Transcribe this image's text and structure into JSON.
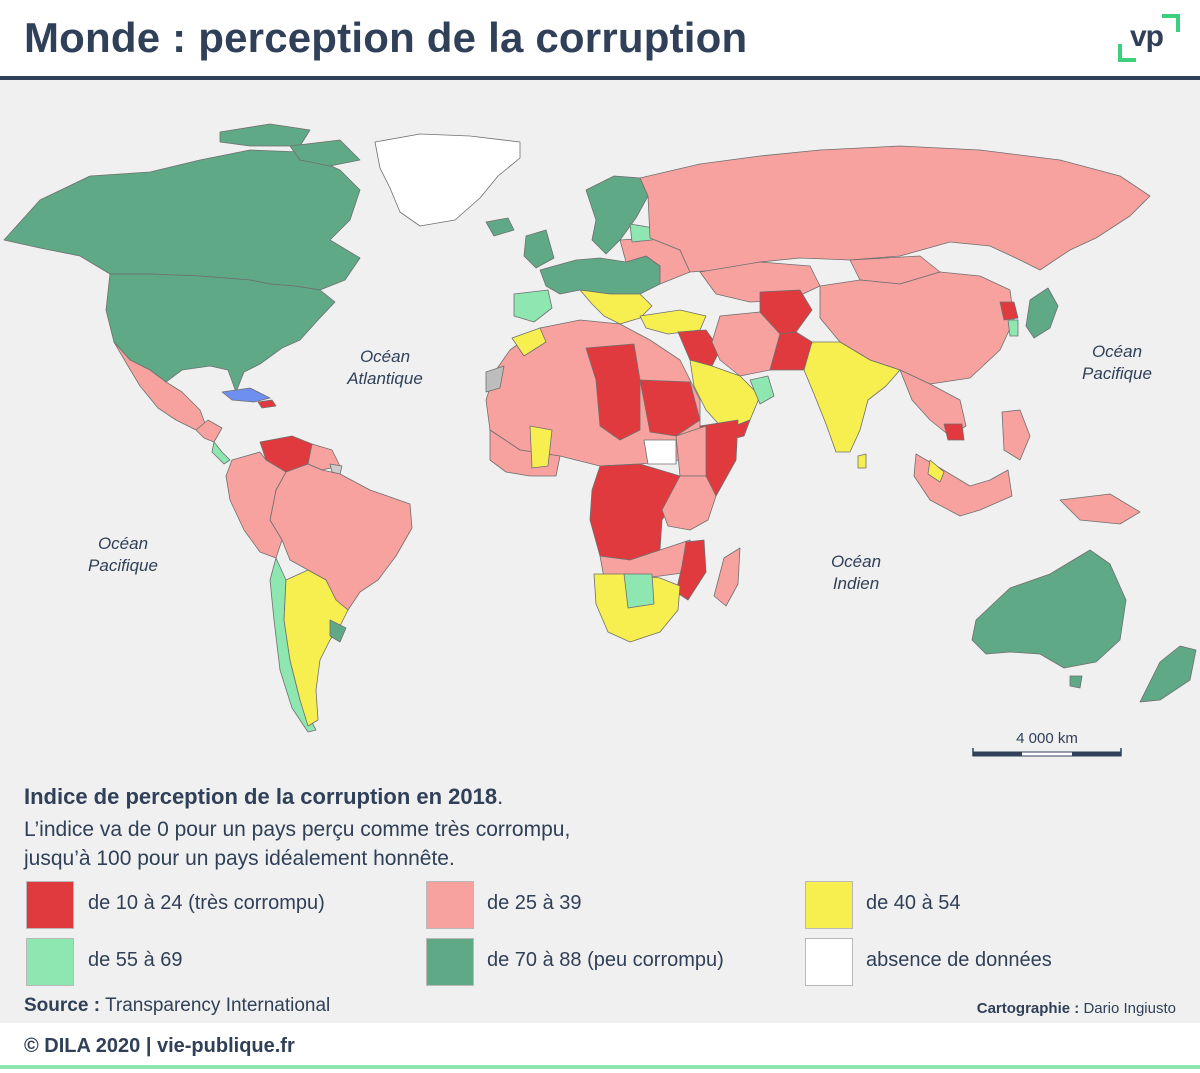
{
  "header": {
    "title": "Monde : perception de la corruption",
    "logo_text": "vp"
  },
  "map": {
    "oceans": [
      {
        "id": "atlantique",
        "line1": "Océan",
        "line2": "Atlantique"
      },
      {
        "id": "pacifique-est",
        "line1": "Océan",
        "line2": "Pacifique"
      },
      {
        "id": "pacifique-ouest",
        "line1": "Océan",
        "line2": "Pacifique"
      },
      {
        "id": "indien",
        "line1": "Océan",
        "line2": "Indien"
      }
    ],
    "scale_label": "4 000 km",
    "colors": {
      "sea": "#f0f0f0",
      "very_corrupt": "#e03a3e",
      "corrupt": "#f7a29f",
      "mid": "#f7ee4f",
      "clean": "#8ee6b0",
      "very_clean": "#5fa986",
      "no_data": "#ffffff",
      "border": "#6f6f6f"
    }
  },
  "legend": {
    "title_bold": "Indice de perception de la corruption en 2018",
    "title_end": ".",
    "desc_line1": "L’indice va de 0 pour un pays perçu comme très corrompu,",
    "desc_line2": "jusqu’à 100 pour un pays idéalement honnête.",
    "items": [
      {
        "label": "de 10 à 24 (très corrompu)",
        "color": "#e03a3e"
      },
      {
        "label": "de 25 à 39",
        "color": "#f7a29f"
      },
      {
        "label": "de 40 à 54",
        "color": "#f7ee4f"
      },
      {
        "label": "de 55 à 69",
        "color": "#8ee6b0"
      },
      {
        "label": "de 70 à 88 (peu corrompu)",
        "color": "#5fa986"
      },
      {
        "label": "absence de données",
        "color": "#ffffff"
      }
    ]
  },
  "source": {
    "label": "Source :",
    "value": "Transparency International"
  },
  "cartography": {
    "label": "Cartographie :",
    "value": "Dario Ingiusto"
  },
  "footer": {
    "text": "© DILA 2020 | vie-publique.fr"
  }
}
